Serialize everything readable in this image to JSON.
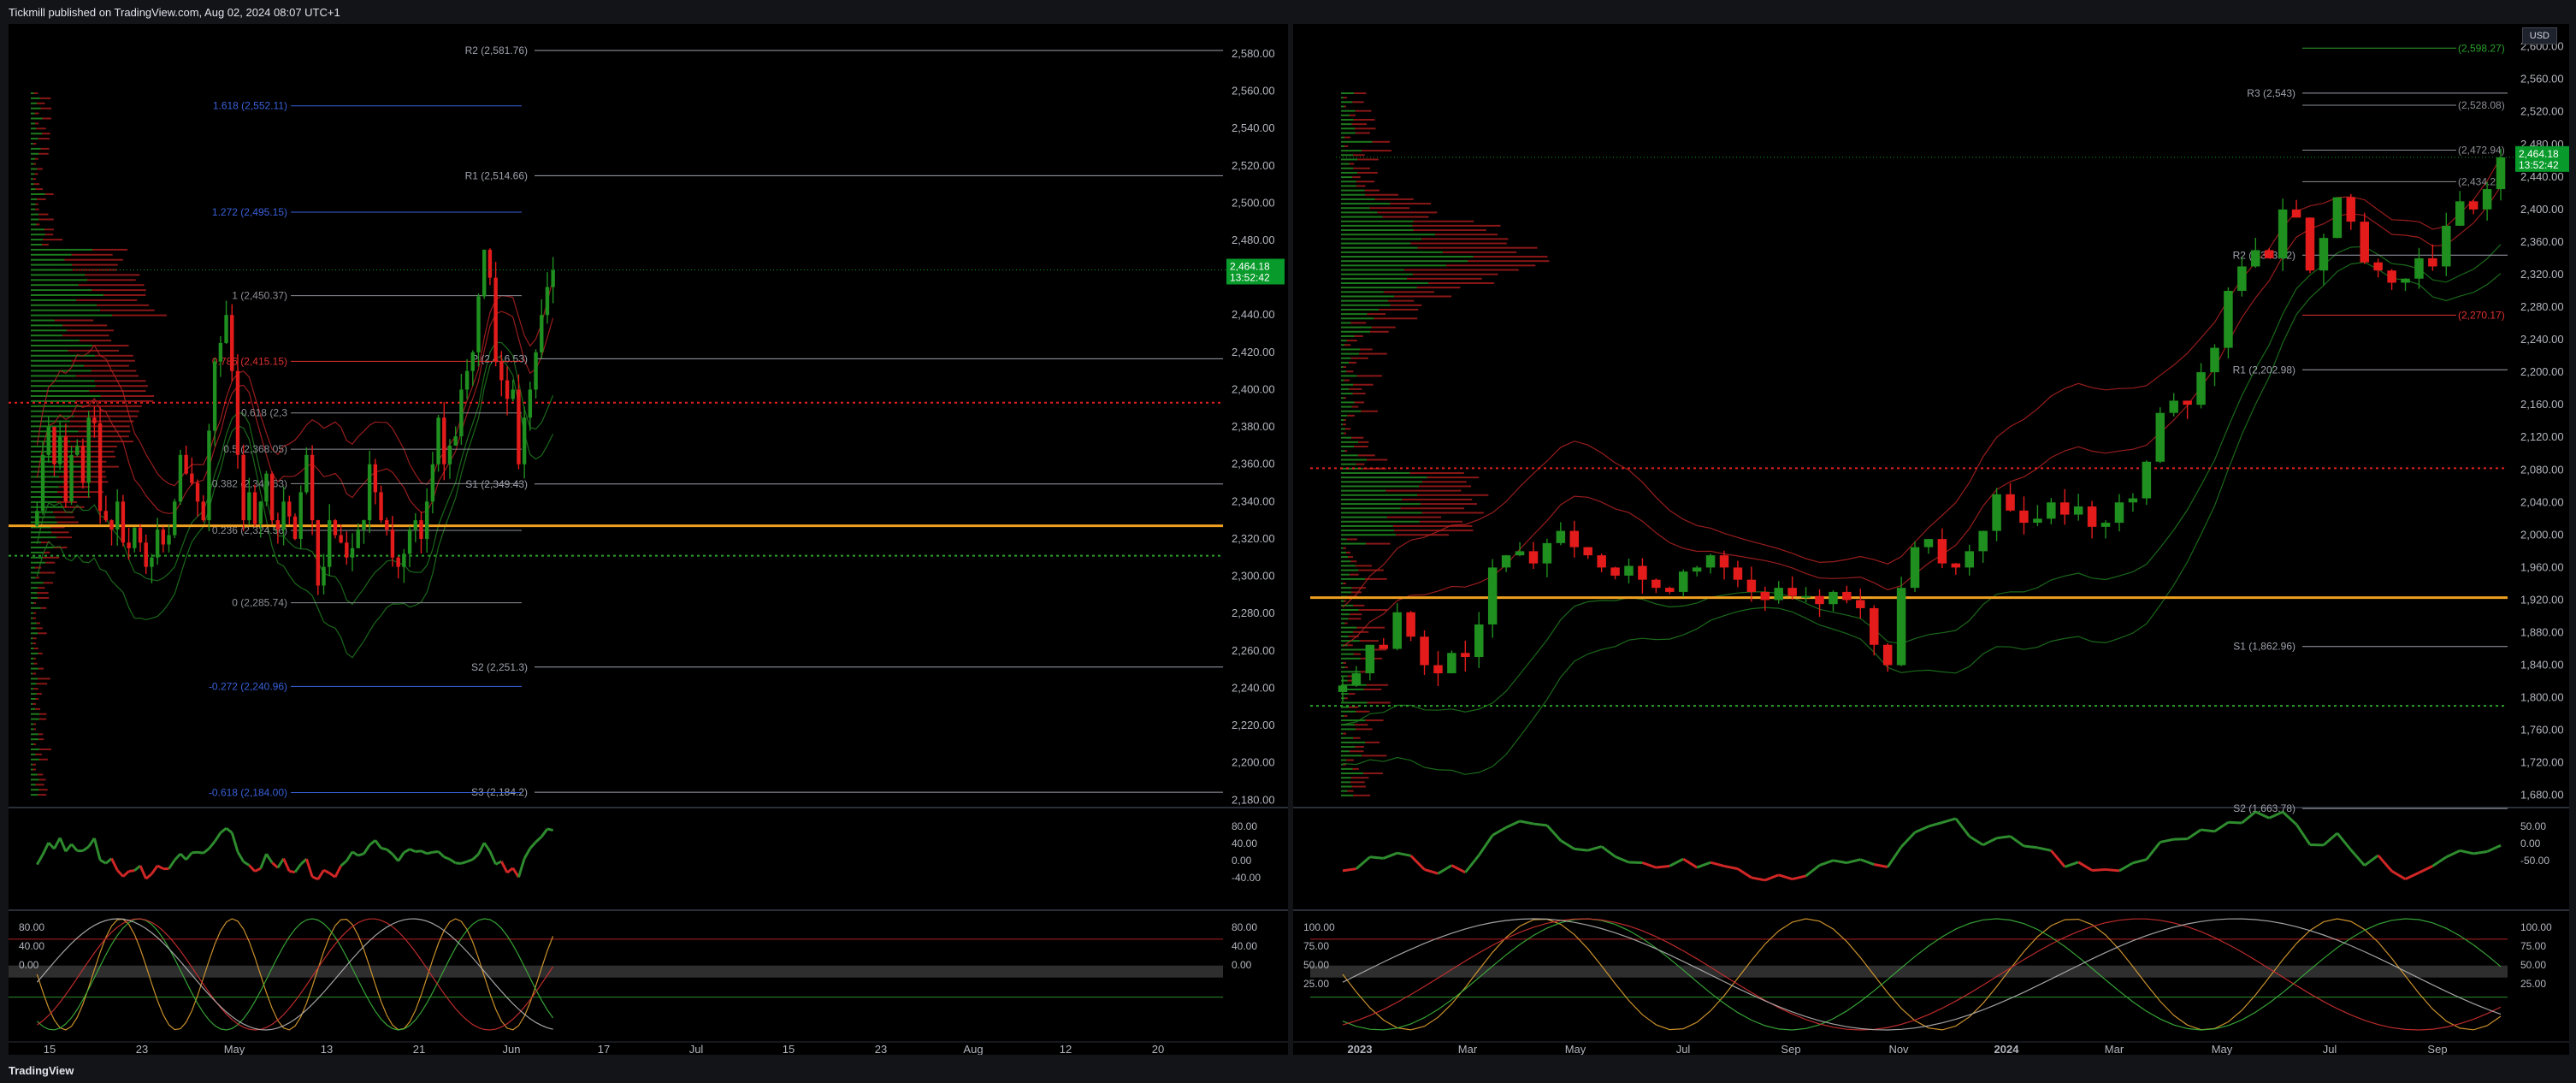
{
  "header": {
    "publisher": "Tickmill published on TradingView.com, Aug 02, 2024 08:07 UTC+1"
  },
  "footer": {
    "brand": "TradingView"
  },
  "colors": {
    "up": "#1f8f1f",
    "down": "#e31b1b",
    "pivot": "#9ea2ad",
    "fib_blue": "#3860d8",
    "bands": "#b32222",
    "poc": "#f0a020",
    "last_price": "#089a2a"
  },
  "chart_data": [
    {
      "type": "candlestick",
      "timeframe": "daily",
      "currency": "",
      "y_ticks": [
        2180,
        2200,
        2220,
        2240,
        2260,
        2280,
        2300,
        2320,
        2340,
        2360,
        2380,
        2400,
        2420,
        2440,
        2460,
        2480,
        2500,
        2520,
        2540,
        2560,
        2580
      ],
      "ylim": [
        2176,
        2596
      ],
      "x_ticks": [
        "15",
        "23",
        "May",
        "13",
        "21",
        "Jun",
        "17",
        "Jul",
        "15",
        "23",
        "Aug",
        "12",
        "20"
      ],
      "last_price": "2,464.18",
      "countdown": "13:52:42",
      "pivots": [
        {
          "label": "R2 (2,581.76)",
          "value": 2581.76
        },
        {
          "label": "R1 (2,514.66)",
          "value": 2514.66
        },
        {
          "label": "P (2,416.53)",
          "value": 2416.53
        },
        {
          "label": "S1 (2,349.43)",
          "value": 2349.43
        },
        {
          "label": "S2 (2,251.3)",
          "value": 2251.3
        },
        {
          "label": "S3 (2,184.2)",
          "value": 2184.2
        }
      ],
      "fibs": [
        {
          "label": "1.618 (2,552.11)",
          "value": 2552.11,
          "color": "blue"
        },
        {
          "label": "1.272 (2,495.15)",
          "value": 2495.15,
          "color": "blue"
        },
        {
          "label": "1 (2,450.37)",
          "value": 2450.37,
          "color": "grey"
        },
        {
          "label": "0.786 (2,415.15)",
          "value": 2415.15,
          "color": "red"
        },
        {
          "label": "0.618 (2,3",
          "value": 2387.5,
          "color": "grey"
        },
        {
          "label": "0.5 (2,368.05)",
          "value": 2368.05,
          "color": "grey"
        },
        {
          "label": "0.382 (2,349.63)",
          "value": 2349.63,
          "color": "grey"
        },
        {
          "label": "0.236 (2,324.56)",
          "value": 2324.56,
          "color": "grey"
        },
        {
          "label": "0 (2,285.74)",
          "value": 2285.74,
          "color": "grey"
        },
        {
          "label": "-0.272 (2,240.96)",
          "value": 2240.96,
          "color": "blue"
        },
        {
          "label": "-0.618 (2,184.00)",
          "value": 2184.0,
          "color": "blue"
        }
      ],
      "close_series": [
        2335,
        2365,
        2380,
        2360,
        2375,
        2340,
        2365,
        2370,
        2350,
        2385,
        2382,
        2335,
        2330,
        2325,
        2340,
        2318,
        2315,
        2326,
        2318,
        2305,
        2310,
        2325,
        2317,
        2322,
        2340,
        2365,
        2355,
        2350,
        2340,
        2330,
        2378,
        2415,
        2425,
        2440,
        2410,
        2365,
        2330,
        2345,
        2328,
        2340,
        2355,
        2330,
        2325,
        2340,
        2332,
        2320,
        2345,
        2365,
        2330,
        2295,
        2305,
        2330,
        2322,
        2318,
        2310,
        2315,
        2325,
        2330,
        2360,
        2345,
        2330,
        2325,
        2310,
        2305,
        2312,
        2325,
        2330,
        2320,
        2340,
        2360,
        2385,
        2360,
        2370,
        2375,
        2400,
        2410,
        2420,
        2450,
        2475,
        2460,
        2415,
        2405,
        2395,
        2400,
        2360,
        2385,
        2400,
        2420,
        2440,
        2455,
        2464
      ]
    },
    {
      "type": "candlestick",
      "timeframe": "weekly",
      "currency": "USD",
      "y_ticks": [
        1680,
        1720,
        1760,
        1800,
        1840,
        1880,
        1920,
        1960,
        2000,
        2040,
        2080,
        2120,
        2160,
        2200,
        2240,
        2280,
        2320,
        2360,
        2400,
        2440,
        2480,
        2520,
        2560,
        2600
      ],
      "ylim": [
        1665,
        2628
      ],
      "x_ticks": [
        "2023",
        "Mar",
        "May",
        "Jul",
        "Sep",
        "Nov",
        "2024",
        "Mar",
        "May",
        "Jul",
        "Sep"
      ],
      "last_price": "2,464.18",
      "countdown": "13:52:42",
      "pivots": [
        {
          "label": "R3 (2,543)",
          "value": 2543
        },
        {
          "label": "R2 (2,343.82)",
          "value": 2343.82
        },
        {
          "label": "R1 (2,202.98)",
          "value": 2202.98
        },
        {
          "label": "S1 (1,862.96)",
          "value": 1862.96
        },
        {
          "label": "S2 (1,663.78)",
          "value": 1663.78
        }
      ],
      "levels": [
        {
          "label": "(2,598.27)",
          "value": 2598.27
        },
        {
          "label": "(2,528.08)",
          "value": 2528.08
        },
        {
          "label": "(2,472.94)",
          "value": 2472.94
        },
        {
          "label": "(2,434.22)",
          "value": 2434.22
        },
        {
          "label": "(2,270.17)",
          "value": 2270.17
        }
      ],
      "close_series": [
        1815,
        1830,
        1865,
        1860,
        1905,
        1875,
        1840,
        1830,
        1855,
        1850,
        1890,
        1960,
        1975,
        1980,
        1965,
        1990,
        2005,
        1985,
        1975,
        1960,
        1950,
        1962,
        1945,
        1935,
        1930,
        1955,
        1960,
        1975,
        1960,
        1945,
        1930,
        1920,
        1935,
        1925,
        1925,
        1915,
        1930,
        1920,
        1910,
        1865,
        1840,
        1935,
        1985,
        1995,
        1965,
        1960,
        1980,
        2005,
        2050,
        2030,
        2015,
        2020,
        2040,
        2025,
        2035,
        2010,
        2015,
        2040,
        2045,
        2090,
        2150,
        2165,
        2160,
        2200,
        2230,
        2300,
        2330,
        2350,
        2340,
        2400,
        2390,
        2325,
        2365,
        2415,
        2385,
        2335,
        2325,
        2310,
        2315,
        2340,
        2330,
        2380,
        2410,
        2400,
        2425,
        2464
      ]
    }
  ]
}
